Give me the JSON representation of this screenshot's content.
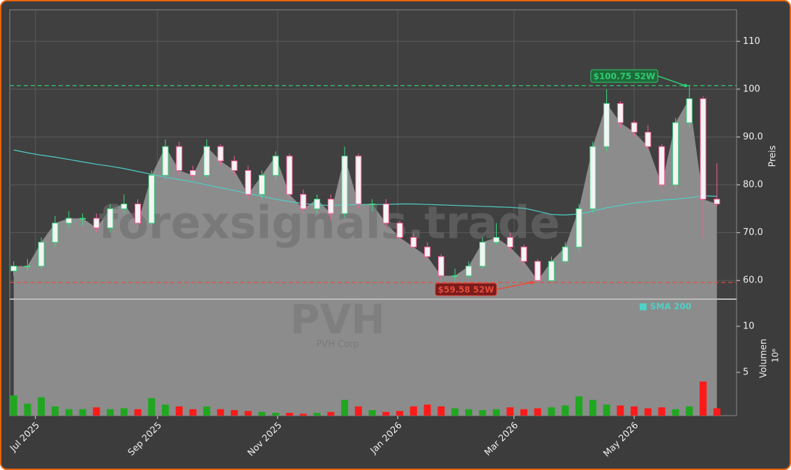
{
  "chart_data": {
    "type": "candlestick",
    "x": [
      "2025-06-20",
      "2025-06-27",
      "2025-07-04",
      "2025-07-11",
      "2025-07-18",
      "2025-07-25",
      "2025-08-01",
      "2025-08-08",
      "2025-08-15",
      "2025-08-22",
      "2025-08-29",
      "2025-09-05",
      "2025-09-12",
      "2025-09-19",
      "2025-09-26",
      "2025-10-03",
      "2025-10-10",
      "2025-10-17",
      "2025-10-24",
      "2025-10-31",
      "2025-11-07",
      "2025-11-14",
      "2025-11-21",
      "2025-11-28",
      "2025-12-05",
      "2025-12-12",
      "2025-12-19",
      "2025-12-26",
      "2026-01-02",
      "2026-01-09",
      "2026-01-16",
      "2026-01-23",
      "2026-01-30",
      "2026-02-06",
      "2026-02-13",
      "2026-02-20",
      "2026-02-27",
      "2026-03-06",
      "2026-03-13",
      "2026-03-20",
      "2026-03-27",
      "2026-04-03",
      "2026-04-10",
      "2026-04-17",
      "2026-04-24",
      "2026-05-01",
      "2026-05-08",
      "2026-05-15",
      "2026-05-22",
      "2026-05-29",
      "2026-06-05",
      "2026-06-12"
    ],
    "open": [
      62,
      63,
      63,
      68,
      72,
      73,
      73,
      71,
      75,
      76,
      72,
      82,
      88,
      83,
      82,
      88,
      85,
      83,
      78,
      82,
      86,
      78,
      75,
      77,
      74,
      86,
      76,
      76,
      72,
      69,
      67,
      65,
      61,
      61,
      63,
      68,
      69,
      67,
      64,
      60,
      64,
      67,
      75,
      88,
      97,
      93,
      91,
      88,
      80,
      93,
      98,
      77
    ],
    "high": [
      64,
      64.5,
      69,
      73.5,
      74.5,
      74,
      74,
      76,
      78,
      77,
      83,
      89.5,
      89,
      84,
      89.5,
      88.5,
      86,
      84,
      83,
      87,
      86.5,
      79,
      78,
      78,
      88,
      86.5,
      77,
      77,
      72.5,
      70,
      68,
      65.5,
      62.5,
      64,
      69,
      72,
      70,
      67.5,
      64.5,
      65,
      68,
      76,
      89,
      100,
      97.5,
      93.5,
      92.5,
      88.5,
      94,
      100.75,
      98.5,
      84.5
    ],
    "low": [
      61,
      62,
      62.5,
      67,
      71,
      71.5,
      70,
      70,
      74,
      71,
      71.5,
      81,
      82,
      81,
      81.5,
      84,
      82,
      77,
      77,
      81,
      77,
      74,
      74,
      72.5,
      73,
      75,
      74.5,
      71,
      68,
      66.5,
      64,
      60,
      60,
      60.5,
      62.5,
      67.5,
      66,
      63,
      59.58,
      60,
      63.5,
      66,
      74,
      87,
      92,
      90,
      87,
      78.5,
      79,
      92,
      69,
      75.5
    ],
    "close": [
      63,
      63,
      68,
      72,
      73,
      73,
      71,
      75,
      76,
      72,
      82,
      88,
      83,
      82,
      88,
      85,
      83,
      78,
      82,
      86,
      78,
      75,
      77,
      74,
      86,
      76,
      76,
      72,
      69,
      67,
      65,
      61,
      61,
      63,
      68,
      69,
      67,
      64,
      60,
      64,
      67,
      75,
      88,
      97,
      93,
      91,
      88,
      80,
      93,
      98,
      77,
      76
    ],
    "volume": [
      2.5,
      1.6,
      2.3,
      1.3,
      1.0,
      1.0,
      1.2,
      1.0,
      1.1,
      1.0,
      2.2,
      1.5,
      1.3,
      1.0,
      1.3,
      1.0,
      0.9,
      0.8,
      0.7,
      0.6,
      0.6,
      0.5,
      0.6,
      0.7,
      2.0,
      1.3,
      0.9,
      0.7,
      0.8,
      1.3,
      1.5,
      1.3,
      1.1,
      1.0,
      0.9,
      1.0,
      1.2,
      1.0,
      1.1,
      1.2,
      1.4,
      2.4,
      2.0,
      1.5,
      1.4,
      1.3,
      1.1,
      1.2,
      1.0,
      1.3,
      4.0,
      1.1
    ],
    "series": [
      {
        "name": "SMA 200",
        "color": "#4fd1c5",
        "values": [
          87.3,
          86.7,
          86.2,
          85.8,
          85.3,
          84.8,
          84.3,
          83.9,
          83.4,
          82.8,
          82.2,
          81.6,
          81.1,
          80.6,
          80.0,
          79.4,
          78.8,
          78.2,
          77.6,
          77.0,
          76.5,
          76.1,
          75.8,
          75.7,
          75.8,
          75.9,
          75.9,
          75.9,
          76.0,
          76.0,
          75.9,
          75.8,
          75.7,
          75.6,
          75.5,
          75.4,
          75.3,
          75.1,
          74.5,
          73.8,
          73.7,
          73.9,
          74.5,
          75.2,
          75.7,
          76.2,
          76.5,
          76.8,
          77.0,
          77.3,
          77.7,
          77.6
        ]
      }
    ],
    "up_color": "#3ddc84",
    "down_color": "#ff5c9a",
    "volume_up_color": "#1fa81f",
    "volume_down_color": "#ff1a1a",
    "area_color": "#8c8c8c",
    "xlim": [
      "2025-06-18",
      "2026-06-22"
    ],
    "xticks": [
      {
        "value": "2025-07-01",
        "label": "Jul 2025"
      },
      {
        "value": "2025-09-01",
        "label": "Sep 2025"
      },
      {
        "value": "2025-11-01",
        "label": "Nov 2025"
      },
      {
        "value": "2026-01-01",
        "label": "Jan 2026"
      },
      {
        "value": "2026-03-01",
        "label": "Mar 2026"
      },
      {
        "value": "2026-05-01",
        "label": "May 2026"
      }
    ],
    "ylim": [
      56.1,
      116.6
    ],
    "yticks": [
      {
        "value": 60,
        "label": "60.0"
      },
      {
        "value": 70,
        "label": "70.0"
      },
      {
        "value": 80,
        "label": "80.0"
      },
      {
        "value": 90,
        "label": "90.0"
      },
      {
        "value": 100,
        "label": "100"
      },
      {
        "value": 110,
        "label": "110"
      }
    ],
    "ylabel": "Preis",
    "volume_ylim": [
      0.3,
      12.95
    ],
    "volume_yticks": [
      5,
      10
    ],
    "volume_ylabel": "Volumen",
    "volume_exponent": "10⁶",
    "grid": true,
    "annotations": [
      {
        "label": "$100.75 52W",
        "value": 100.75,
        "date": "2026-05-27",
        "color": "#2ecc71",
        "box": "#1e6b3a"
      },
      {
        "label": "$59.58 52W",
        "value": 59.58,
        "date": "2026-03-10",
        "color": "#e74c3c",
        "box": "#7a1c1c"
      }
    ],
    "watermark": {
      "text": "forexsignals.trade",
      "symbol": "PVH",
      "company": "PVH Corp"
    }
  }
}
